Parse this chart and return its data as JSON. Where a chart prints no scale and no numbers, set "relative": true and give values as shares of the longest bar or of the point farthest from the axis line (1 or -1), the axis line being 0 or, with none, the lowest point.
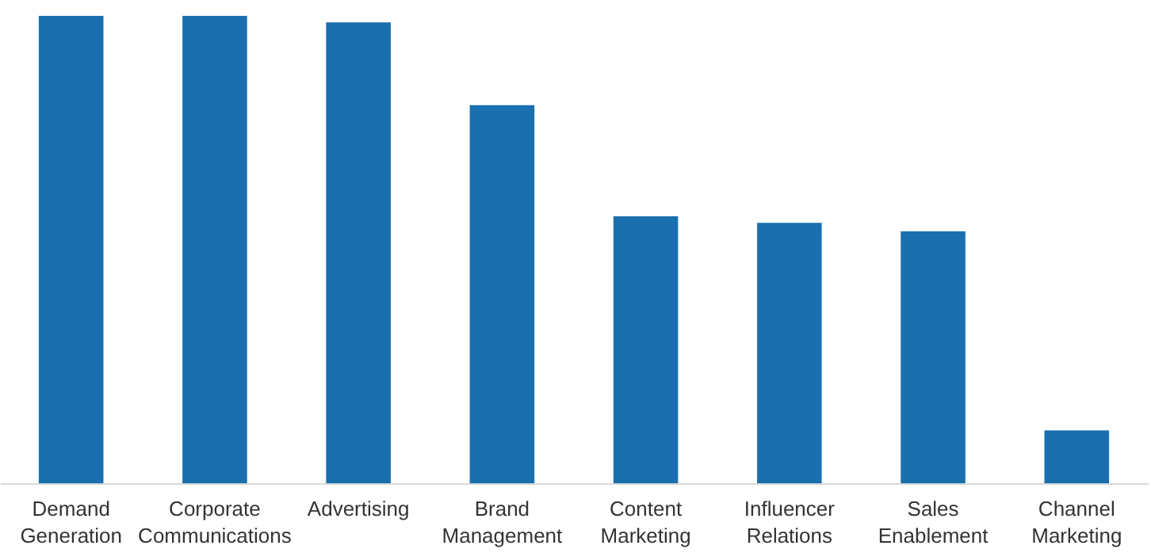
{
  "chart_data": {
    "type": "bar",
    "relative": true,
    "categories": [
      "Demand Generation",
      "Corporate Communications",
      "Advertising",
      "Brand Management",
      "Content Marketing",
      "Influencer Relations",
      "Sales Enablement",
      "Channel Marketing"
    ],
    "values": [
      1,
      1,
      0.986,
      0.809,
      0.571,
      0.557,
      0.539,
      0.113
    ],
    "color": "#1a6faf",
    "grid": false
  }
}
